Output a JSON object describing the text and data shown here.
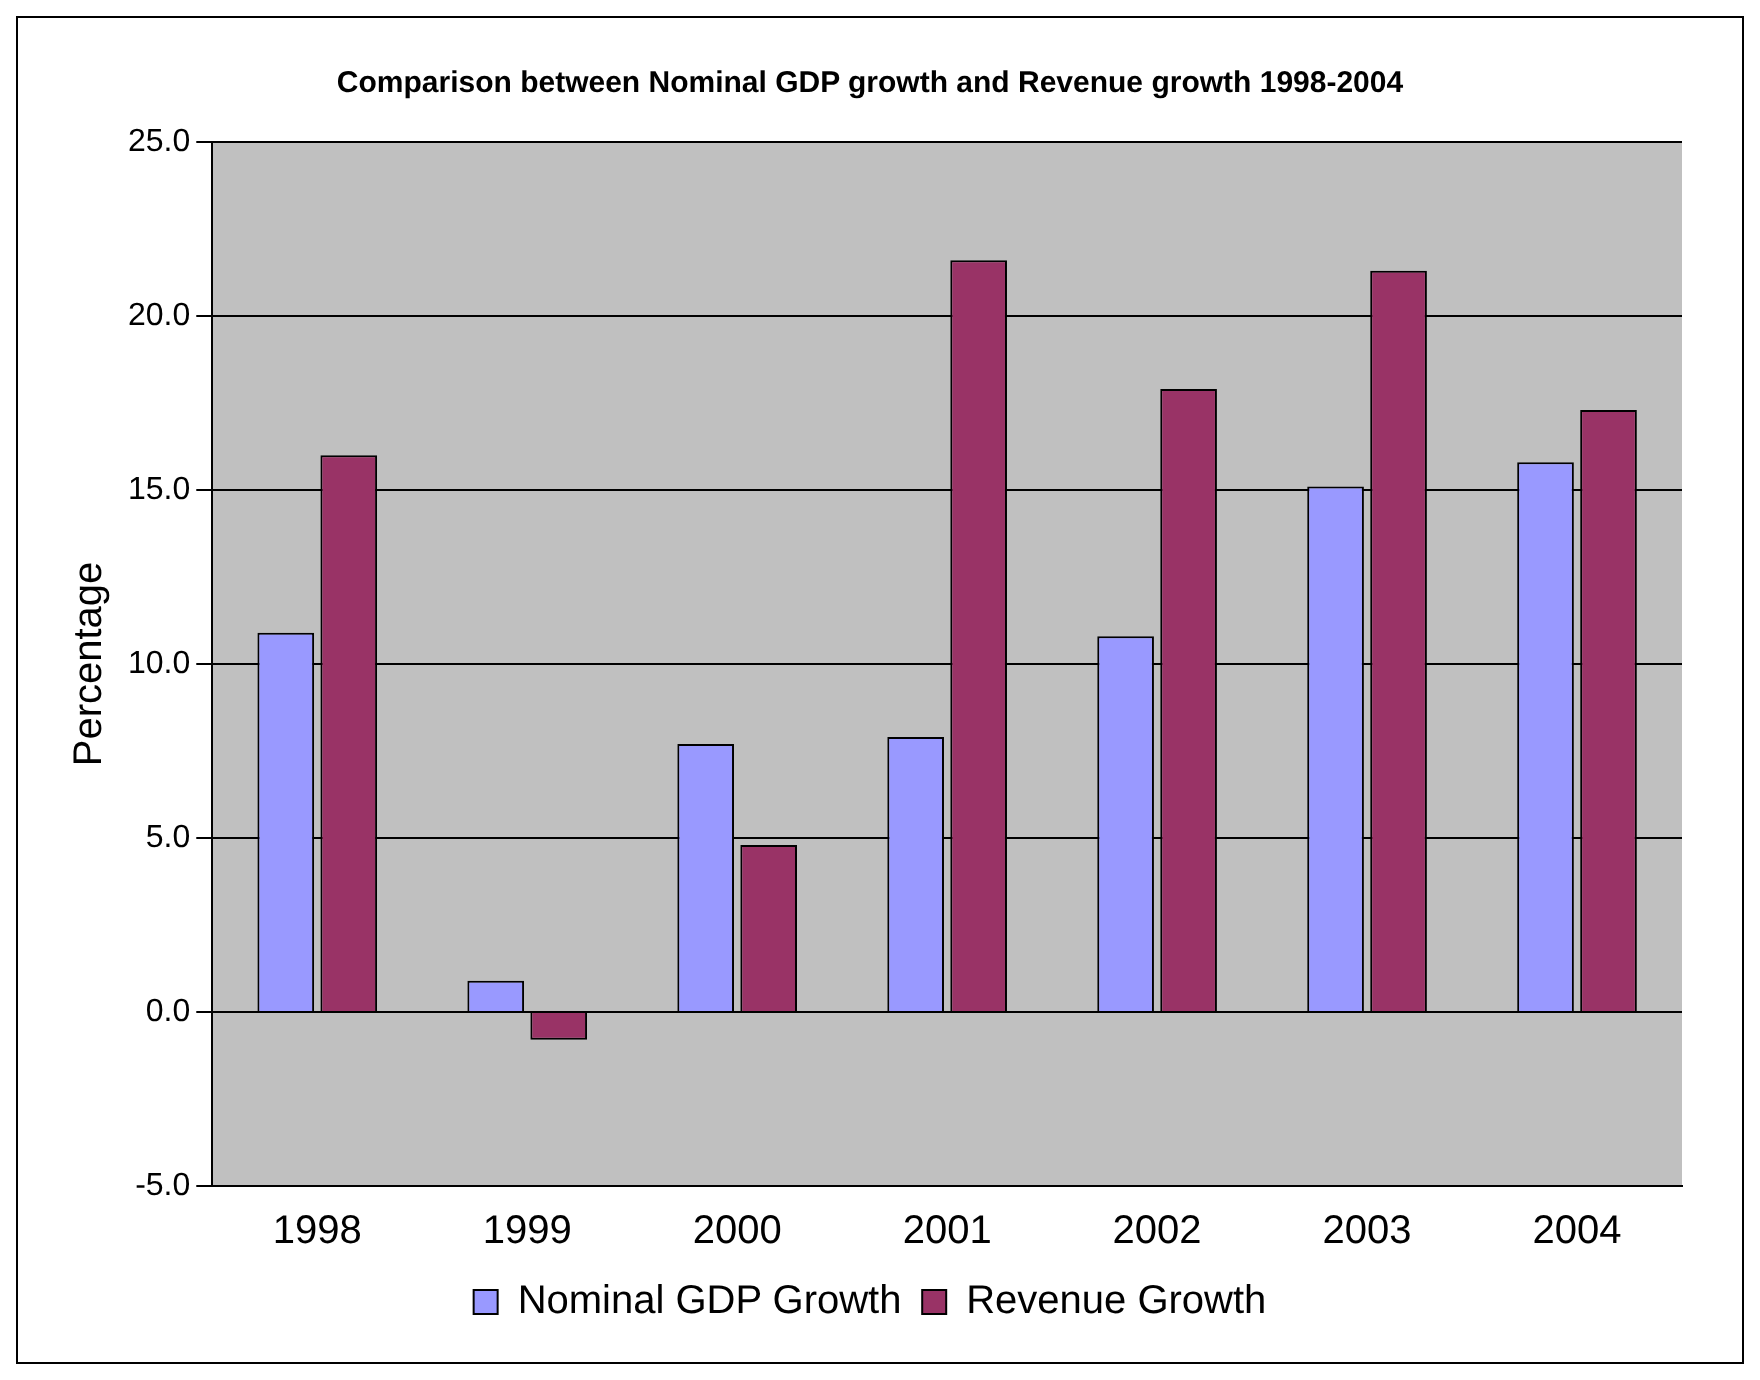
{
  "chart_data": {
    "type": "bar",
    "title": "Comparison between Nominal GDP growth and Revenue growth 1998-2004",
    "ylabel": "Percentage",
    "categories": [
      "1998",
      "1999",
      "2000",
      "2001",
      "2002",
      "2003",
      "2004"
    ],
    "series": [
      {
        "name": "Nominal GDP Growth",
        "color": "#9999ff",
        "values": [
          10.9,
          0.9,
          7.7,
          7.9,
          10.8,
          15.1,
          15.8
        ]
      },
      {
        "name": "Revenue Growth",
        "color": "#993366",
        "values": [
          16.0,
          -0.8,
          4.8,
          21.6,
          17.9,
          21.3,
          17.3
        ]
      }
    ],
    "ylim": [
      -5,
      25
    ],
    "yticks": [
      {
        "value": -5,
        "label": "-5.0"
      },
      {
        "value": 0,
        "label": "0.0"
      },
      {
        "value": 5,
        "label": "5.0"
      },
      {
        "value": 10,
        "label": "10.0"
      },
      {
        "value": 15,
        "label": "15.0"
      },
      {
        "value": 20,
        "label": "20.0"
      },
      {
        "value": 25,
        "label": "25.0"
      }
    ],
    "grid": "y",
    "legend": "bottom"
  }
}
